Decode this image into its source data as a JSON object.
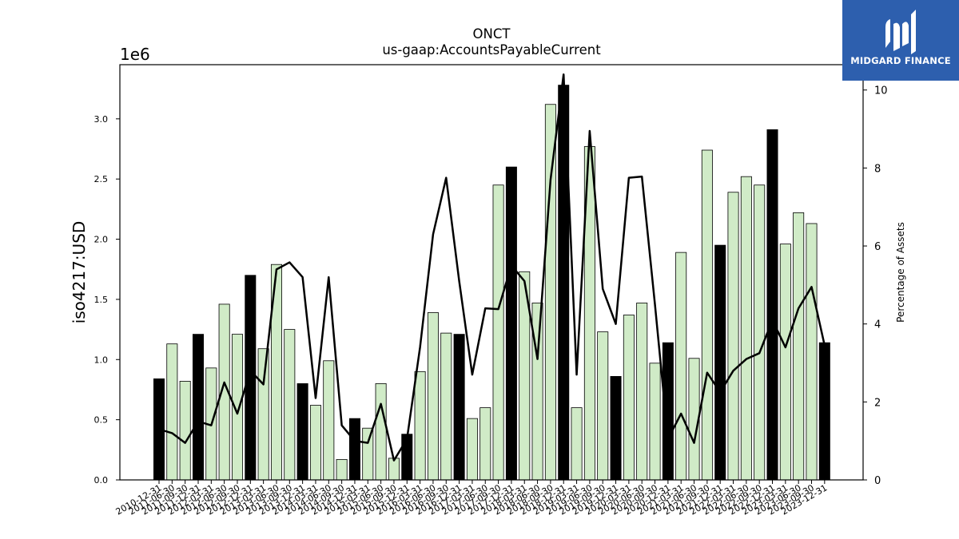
{
  "chart_data": {
    "type": "bar",
    "title": "ONCT",
    "subtitle": "us-gaap:AccountsPayableCurrent",
    "ylabel": "iso4217:USD",
    "y_scale_label": "1e6",
    "y2label": "Percentage of Assets",
    "ylim": [
      0,
      3450000
    ],
    "y2lim": [
      0,
      10.65
    ],
    "y_ticks": [
      "0.0",
      "0.5",
      "1.0",
      "1.5",
      "2.0",
      "2.5",
      "3.0"
    ],
    "y2_ticks": [
      "0",
      "2",
      "4",
      "6",
      "8",
      "10"
    ],
    "categories": [
      "2010-12-31",
      "2011-06-30",
      "2011-09-30",
      "2011-12-31",
      "2012-03-31",
      "2012-06-30",
      "2012-09-30",
      "2012-12-31",
      "2013-03-31",
      "2013-06-30",
      "2013-09-30",
      "2013-12-31",
      "2014-03-31",
      "2014-06-30",
      "2014-09-30",
      "2014-12-31",
      "2015-03-31",
      "2015-06-30",
      "2015-09-30",
      "2015-12-31",
      "2016-03-31",
      "2016-06-30",
      "2016-09-30",
      "2016-12-31",
      "2017-03-31",
      "2017-06-30",
      "2017-09-30",
      "2017-12-31",
      "2018-03-31",
      "2018-06-30",
      "2018-09-30",
      "2018-12-31",
      "2019-03-31",
      "2019-06-30",
      "2019-09-30",
      "2019-12-31",
      "2020-03-31",
      "2020-06-30",
      "2020-09-30",
      "2020-12-31",
      "2021-03-31",
      "2021-06-30",
      "2021-09-30",
      "2021-12-31",
      "2022-03-31",
      "2022-06-30",
      "2022-09-30",
      "2022-12-31",
      "2023-03-31",
      "2023-06-30",
      "2023-09-30",
      "2023-12-31"
    ],
    "series": [
      {
        "type": "bar",
        "values": [
          840000,
          1130000,
          820000,
          1210000,
          930000,
          1460000,
          1210000,
          1700000,
          1090000,
          1790000,
          1250000,
          800000,
          620000,
          990000,
          170000,
          510000,
          430000,
          800000,
          180000,
          380000,
          900000,
          1390000,
          1220000,
          1210000,
          510000,
          600000,
          2450000,
          2600000,
          1730000,
          1470000,
          3120000,
          3280000,
          600000,
          2770000,
          1230000,
          860000,
          1370000,
          1470000,
          970000,
          1140000,
          1890000,
          1010000,
          2740000,
          1950000,
          2390000,
          2520000,
          2450000,
          2910000,
          1960000,
          2220000,
          2130000,
          1140000
        ],
        "highlight": [
          true,
          false,
          false,
          true,
          false,
          false,
          false,
          true,
          false,
          false,
          false,
          true,
          false,
          false,
          false,
          true,
          false,
          false,
          false,
          true,
          false,
          false,
          false,
          true,
          false,
          false,
          false,
          true,
          false,
          false,
          false,
          true,
          false,
          false,
          false,
          true,
          false,
          false,
          false,
          true,
          false,
          false,
          false,
          true,
          false,
          false,
          false,
          true,
          false,
          false,
          false,
          true
        ]
      },
      {
        "name": "Percentage of Assets",
        "type": "line",
        "axis": "right",
        "values": [
          1.3,
          1.2,
          0.95,
          1.5,
          1.4,
          2.5,
          1.7,
          2.8,
          2.45,
          5.4,
          5.58,
          5.2,
          2.1,
          5.2,
          1.4,
          1.0,
          0.95,
          1.95,
          0.5,
          1.05,
          3.4,
          6.3,
          7.75,
          5.1,
          2.7,
          4.4,
          4.38,
          5.5,
          5.1,
          3.1,
          7.7,
          10.4,
          2.7,
          8.95,
          4.9,
          4.0,
          7.75,
          7.78,
          4.5,
          1.05,
          1.7,
          0.95,
          2.75,
          2.25,
          2.8,
          3.1,
          3.25,
          4.1,
          3.4,
          4.4,
          4.95,
          3.45
        ]
      }
    ],
    "colors": {
      "bar": "#d0ebc7",
      "bar_highlight": "#000000",
      "line": "#000000"
    }
  },
  "logo": {
    "text": "MIDGARD FINANCE",
    "background": "#2d5fae"
  }
}
